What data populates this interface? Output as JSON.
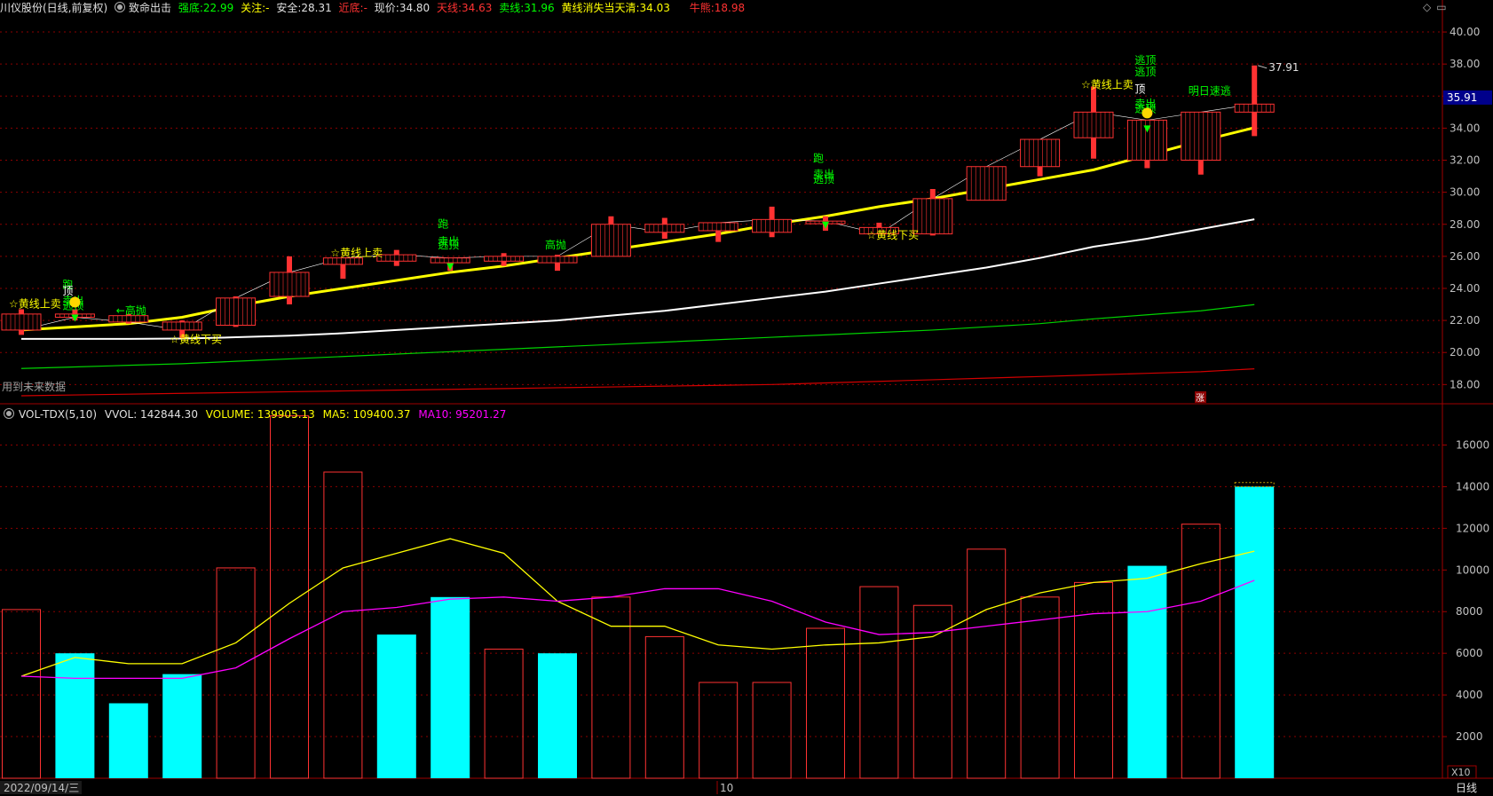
{
  "header": {
    "title": "川仪股份(日线,前复权)",
    "indicator": "致命出击",
    "strong_label": "强底:",
    "strong_value": "22.99",
    "focus_label": "关注:",
    "focus_value": "-",
    "safe_label": "安全:",
    "safe_value": "28.31",
    "near_label": "近底:",
    "near_value": "-",
    "price_label": "现价:",
    "price_value": "34.80",
    "sky_label": "天线:",
    "sky_value": "34.63",
    "sell_label": "卖线:",
    "sell_value": "31.96",
    "yellow_label": "黄线消失当天清:",
    "yellow_value": "34.03",
    "bull_label": "牛熊:",
    "bull_value": "18.98"
  },
  "volume_header": {
    "name": "VOL-TDX(5,10)",
    "vvol": "VVOL: 142844.30",
    "volume": "VOLUME: 139905.13",
    "ma5": "MA5: 109400.37",
    "ma10": "MA10: 95201.27"
  },
  "colors": {
    "background": "#000000",
    "up": "#ff3232",
    "down": "#00ffff",
    "yellow_line": "#ffff00",
    "white_line": "#ffffff",
    "green_line": "#00d200",
    "red_line": "#d20000",
    "ma5": "#ffff00",
    "ma10": "#ff00ff",
    "grid": "#8b0000",
    "axis_text": "#c0c0c0"
  },
  "icons": {
    "settings": "diamond-icon",
    "window": "window-icon"
  },
  "bottom": {
    "date": "2022/09/14/三",
    "month_mark": "10",
    "period": "日线",
    "multiplier": "X10"
  },
  "current_price_label": "35.91",
  "high_label": "37.91",
  "future_data_note": "用到未来数据",
  "chart_data": [
    {
      "type": "candlestick",
      "ylim": [
        16.8,
        41.0
      ],
      "yticks": [
        18,
        20,
        22,
        24,
        26,
        28,
        30,
        32,
        34,
        36,
        38,
        40
      ],
      "ytick_labels": [
        "18.00",
        "20.00",
        "22.00",
        "24.00",
        "26.00",
        "28.00",
        "30.00",
        "32.00",
        "34.00",
        "36.00",
        "38.00",
        "40.00"
      ],
      "candles": [
        {
          "o": 22.4,
          "h": 22.7,
          "l": 21.1,
          "c": 21.4
        },
        {
          "o": 22.4,
          "h": 22.7,
          "l": 22.0,
          "c": 22.2
        },
        {
          "o": 22.3,
          "h": 22.4,
          "l": 21.8,
          "c": 21.9
        },
        {
          "o": 21.9,
          "h": 22.0,
          "l": 20.9,
          "c": 21.4
        },
        {
          "o": 21.7,
          "h": 23.5,
          "l": 21.6,
          "c": 23.4
        },
        {
          "o": 23.5,
          "h": 26.0,
          "l": 23.0,
          "c": 25.0
        },
        {
          "o": 25.5,
          "h": 25.9,
          "l": 24.6,
          "c": 25.9
        },
        {
          "o": 25.7,
          "h": 26.4,
          "l": 25.4,
          "c": 26.1
        },
        {
          "o": 25.6,
          "h": 25.9,
          "l": 25.1,
          "c": 25.9
        },
        {
          "o": 25.7,
          "h": 26.2,
          "l": 25.4,
          "c": 26.0
        },
        {
          "o": 25.6,
          "h": 26.1,
          "l": 25.1,
          "c": 26.0
        },
        {
          "o": 26.0,
          "h": 28.5,
          "l": 26.0,
          "c": 28.0
        },
        {
          "o": 28.0,
          "h": 28.4,
          "l": 27.1,
          "c": 27.5
        },
        {
          "o": 27.6,
          "h": 28.1,
          "l": 26.9,
          "c": 28.1
        },
        {
          "o": 27.5,
          "h": 29.1,
          "l": 27.2,
          "c": 28.3
        },
        {
          "o": 28.1,
          "h": 28.5,
          "l": 27.6,
          "c": 28.2
        },
        {
          "o": 27.8,
          "h": 28.1,
          "l": 27.4,
          "c": 27.4
        },
        {
          "o": 27.4,
          "h": 30.2,
          "l": 27.3,
          "c": 29.6
        },
        {
          "o": 29.5,
          "h": 31.6,
          "l": 29.5,
          "c": 31.6
        },
        {
          "o": 31.6,
          "h": 33.3,
          "l": 31.0,
          "c": 33.3
        },
        {
          "o": 33.4,
          "h": 36.6,
          "l": 32.1,
          "c": 35.0
        },
        {
          "o": 32.0,
          "h": 34.5,
          "l": 31.5,
          "c": 34.5
        },
        {
          "o": 32.0,
          "h": 34.9,
          "l": 31.1,
          "c": 35.0
        },
        {
          "o": 35.0,
          "h": 37.91,
          "l": 33.5,
          "c": 35.5
        }
      ],
      "yellow_line": [
        21.4,
        21.6,
        21.8,
        22.2,
        22.9,
        23.5,
        24.0,
        24.5,
        25.0,
        25.4,
        25.9,
        26.4,
        26.9,
        27.4,
        28.0,
        28.5,
        29.1,
        29.6,
        30.2,
        30.8,
        31.4,
        32.3,
        33.2,
        34.03
      ],
      "white_line": [
        20.85,
        20.85,
        20.85,
        20.87,
        20.95,
        21.05,
        21.2,
        21.4,
        21.6,
        21.8,
        22.0,
        22.3,
        22.6,
        23.0,
        23.4,
        23.8,
        24.3,
        24.8,
        25.3,
        25.9,
        26.6,
        27.1,
        27.7,
        28.31
      ],
      "green_line": [
        19.0,
        19.1,
        19.2,
        19.3,
        19.45,
        19.6,
        19.75,
        19.9,
        20.05,
        20.2,
        20.35,
        20.5,
        20.65,
        20.8,
        20.95,
        21.1,
        21.25,
        21.4,
        21.6,
        21.8,
        22.1,
        22.35,
        22.6,
        22.99
      ],
      "red_line": [
        17.3,
        17.35,
        17.4,
        17.45,
        17.5,
        17.55,
        17.6,
        17.65,
        17.7,
        17.75,
        17.8,
        17.85,
        17.9,
        17.95,
        18.0,
        18.1,
        18.2,
        18.3,
        18.4,
        18.5,
        18.6,
        18.7,
        18.8,
        18.98
      ],
      "annotations": [
        {
          "i": 0,
          "text": "☆黄线上卖",
          "y": 22.8,
          "color": "#ffff00"
        },
        {
          "i": 1,
          "text": "跑",
          "y": 24.0,
          "color": "#00ff00"
        },
        {
          "i": 1,
          "text": "顶",
          "y": 23.6,
          "color": "#ffffff"
        },
        {
          "i": 1,
          "text": "卖出",
          "y": 23.0,
          "color": "#00ff00"
        },
        {
          "i": 1,
          "text": "逃顶",
          "y": 22.7,
          "color": "#00ff00"
        },
        {
          "i": 2,
          "text": "←高抛",
          "y": 22.4,
          "color": "#00ff00"
        },
        {
          "i": 3,
          "text": "☆黄线下买",
          "y": 20.6,
          "color": "#ffff00"
        },
        {
          "i": 6,
          "text": "☆黄线上卖",
          "y": 26.0,
          "color": "#ffff00"
        },
        {
          "i": 8,
          "text": "跑",
          "y": 27.8,
          "color": "#00ff00"
        },
        {
          "i": 8,
          "text": "卖出",
          "y": 26.7,
          "color": "#00ff00"
        },
        {
          "i": 8,
          "text": "逃顶",
          "y": 26.5,
          "color": "#00ff00"
        },
        {
          "i": 10,
          "text": "高抛",
          "y": 26.5,
          "color": "#00ff00"
        },
        {
          "i": 15,
          "text": "跑",
          "y": 31.9,
          "color": "#00ff00"
        },
        {
          "i": 15,
          "text": "卖出",
          "y": 30.9,
          "color": "#00ff00"
        },
        {
          "i": 15,
          "text": "逃顶",
          "y": 30.6,
          "color": "#00ff00"
        },
        {
          "i": 16,
          "text": "☆黄线下买",
          "y": 27.1,
          "color": "#ffff00"
        },
        {
          "i": 20,
          "text": "☆黄线上卖",
          "y": 36.5,
          "color": "#ffff00"
        },
        {
          "i": 21,
          "text": "逃顶",
          "y": 38.0,
          "color": "#00ff00"
        },
        {
          "i": 21,
          "text": "逃顶",
          "y": 37.3,
          "color": "#00ff00"
        },
        {
          "i": 21,
          "text": "顶",
          "y": 36.2,
          "color": "#ffffff"
        },
        {
          "i": 21,
          "text": "卖出",
          "y": 35.3,
          "color": "#00ff00"
        },
        {
          "i": 21,
          "text": "逃顶",
          "y": 35.0,
          "color": "#00ff00"
        },
        {
          "i": 22,
          "text": "明日速逃",
          "y": 36.1,
          "color": "#00ff00"
        }
      ],
      "smiley_at": [
        1,
        21
      ],
      "arrow_at": [
        1,
        8,
        15,
        21
      ],
      "up_label_text": "涨"
    },
    {
      "type": "bar",
      "series_names": [
        "VOLUME",
        "MA5",
        "MA10"
      ],
      "ylim": [
        0,
        17000
      ],
      "yticks": [
        2000,
        4000,
        6000,
        8000,
        10000,
        12000,
        14000,
        16000
      ],
      "ytick_labels": [
        "2000",
        "4000",
        "6000",
        "8000",
        "10000",
        "12000",
        "14000",
        "16000"
      ],
      "values": [
        8100,
        6000,
        3600,
        5000,
        10100,
        17400,
        14700,
        6900,
        8700,
        6200,
        6000,
        8700,
        6800,
        4600,
        4600,
        7200,
        9200,
        8300,
        11000,
        8700,
        9400,
        10200,
        12200,
        14000
      ],
      "down": [
        false,
        true,
        true,
        true,
        false,
        false,
        false,
        true,
        true,
        false,
        true,
        false,
        false,
        false,
        false,
        false,
        false,
        false,
        false,
        false,
        false,
        true,
        false,
        true
      ],
      "ma5": [
        4900,
        5800,
        5500,
        5500,
        6500,
        8400,
        10100,
        10800,
        11500,
        10800,
        8500,
        7300,
        7300,
        6400,
        6200,
        6400,
        6500,
        6800,
        8100,
        8900,
        9400,
        9600,
        10300,
        10900
      ],
      "ma10": [
        4900,
        4800,
        4800,
        4800,
        5300,
        6700,
        8000,
        8200,
        8600,
        8700,
        8500,
        8700,
        9100,
        9100,
        8500,
        7500,
        6900,
        7000,
        7300,
        7600,
        7900,
        8000,
        8500,
        9500
      ]
    }
  ]
}
